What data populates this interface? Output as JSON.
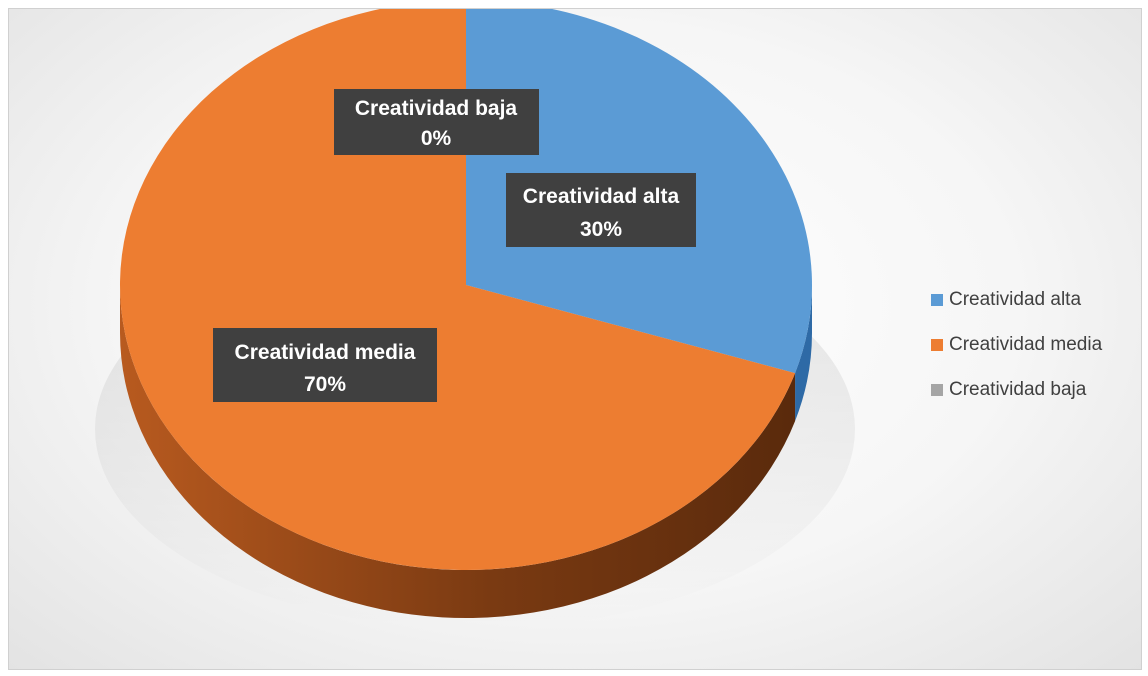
{
  "chart_data": {
    "type": "pie",
    "title": "",
    "three_d": true,
    "legend_position": "right",
    "categories": [
      "Creatividad alta",
      "Creatividad media",
      "Creatividad baja"
    ],
    "values": [
      30,
      70,
      0
    ],
    "data_labels": [
      {
        "category": "Creatividad alta",
        "percent": "30%"
      },
      {
        "category": "Creatividad media",
        "percent": "70%"
      },
      {
        "category": "Creatividad baja",
        "percent": "0%"
      }
    ],
    "colors": [
      "#5B9BD5",
      "#ED7D31",
      "#A5A5A5"
    ],
    "side_colors": [
      "#2E6AA6",
      "#7A3A12",
      "#6E6E6E"
    ]
  }
}
